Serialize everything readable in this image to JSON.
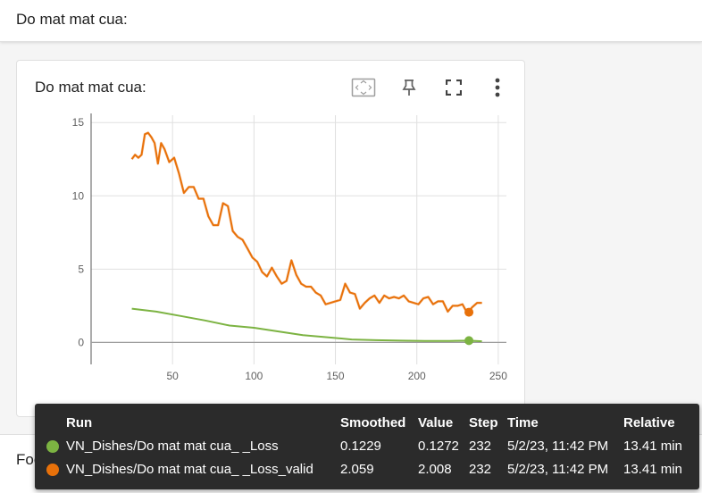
{
  "section": {
    "title": "Do mat mat cua:"
  },
  "card": {
    "title": "Do mat mat cua:",
    "toolbar": {
      "fit_icon": "fit-domain-icon",
      "pin_icon": "pin-icon",
      "fullscreen_icon": "fullscreen-icon",
      "more_icon": "more-vert-icon"
    }
  },
  "chart_data": {
    "type": "line",
    "xlim": [
      0,
      255
    ],
    "ylim": [
      -1.5,
      15.5
    ],
    "x_ticks": [
      "50",
      "100",
      "150",
      "200",
      "250"
    ],
    "y_ticks": [
      "0",
      "5",
      "10",
      "15"
    ],
    "grid": true,
    "series": [
      {
        "name": "VN_Dishes/Do mat mat cua_ _Loss",
        "color": "#7cb342",
        "x": [
          25,
          40,
          55,
          70,
          85,
          100,
          115,
          130,
          145,
          160,
          175,
          190,
          205,
          220,
          232,
          240
        ],
        "values": [
          2.3,
          2.1,
          1.8,
          1.5,
          1.15,
          1.0,
          0.75,
          0.5,
          0.35,
          0.2,
          0.15,
          0.12,
          0.1,
          0.1,
          0.12,
          0.08
        ]
      },
      {
        "name": "VN_Dishes/Do mat mat cua_ _Loss_valid",
        "color": "#e8710a",
        "x": [
          25,
          27,
          29,
          31,
          33,
          35,
          37,
          39,
          41,
          43,
          45,
          48,
          51,
          54,
          57,
          60,
          63,
          66,
          69,
          72,
          75,
          78,
          81,
          84,
          87,
          90,
          93,
          96,
          99,
          102,
          105,
          108,
          111,
          114,
          117,
          120,
          123,
          126,
          129,
          132,
          135,
          138,
          141,
          144,
          147,
          150,
          153,
          156,
          159,
          162,
          165,
          168,
          171,
          174,
          177,
          180,
          183,
          186,
          189,
          192,
          195,
          198,
          201,
          204,
          207,
          210,
          213,
          216,
          219,
          222,
          225,
          228,
          231,
          234,
          237,
          240
        ],
        "values": [
          12.5,
          12.8,
          12.6,
          12.8,
          14.2,
          14.3,
          14.0,
          13.6,
          12.2,
          13.6,
          13.2,
          12.3,
          12.6,
          11.5,
          10.2,
          10.6,
          10.6,
          9.8,
          9.8,
          8.6,
          8.0,
          8.0,
          9.5,
          9.3,
          7.6,
          7.2,
          7.0,
          6.4,
          5.8,
          5.5,
          4.8,
          4.5,
          5.1,
          4.5,
          4.0,
          4.2,
          5.6,
          4.6,
          4.0,
          3.8,
          3.8,
          3.4,
          3.2,
          2.6,
          2.7,
          2.8,
          2.9,
          4.0,
          3.4,
          3.3,
          2.3,
          2.7,
          3.0,
          3.2,
          2.7,
          3.2,
          3.0,
          3.1,
          3.0,
          3.2,
          2.8,
          2.7,
          2.6,
          3.0,
          3.1,
          2.6,
          2.8,
          2.8,
          2.1,
          2.5,
          2.5,
          2.6,
          2.0,
          2.4,
          2.7,
          2.7
        ]
      }
    ],
    "highlight": [
      {
        "series": 0,
        "x": 232,
        "y": 0.1229
      },
      {
        "series": 1,
        "x": 232,
        "y": 2.059
      }
    ]
  },
  "tooltip": {
    "headers": {
      "run": "Run",
      "smoothed": "Smoothed",
      "value": "Value",
      "step": "Step",
      "time": "Time",
      "relative": "Relative"
    },
    "rows": [
      {
        "color": "#7cb342",
        "run": "VN_Dishes/Do mat mat cua_ _Loss",
        "smoothed": "0.1229",
        "value": "0.1272",
        "step": "232",
        "time": "5/2/23, 11:42 PM",
        "relative": "13.41 min"
      },
      {
        "color": "#e8710a",
        "run": "VN_Dishes/Do mat mat cua_ _Loss_valid",
        "smoothed": "2.059",
        "value": "2.008",
        "step": "232",
        "time": "5/2/23, 11:42 PM",
        "relative": "13.41 min"
      }
    ]
  },
  "section2": {
    "title": "Foods"
  }
}
